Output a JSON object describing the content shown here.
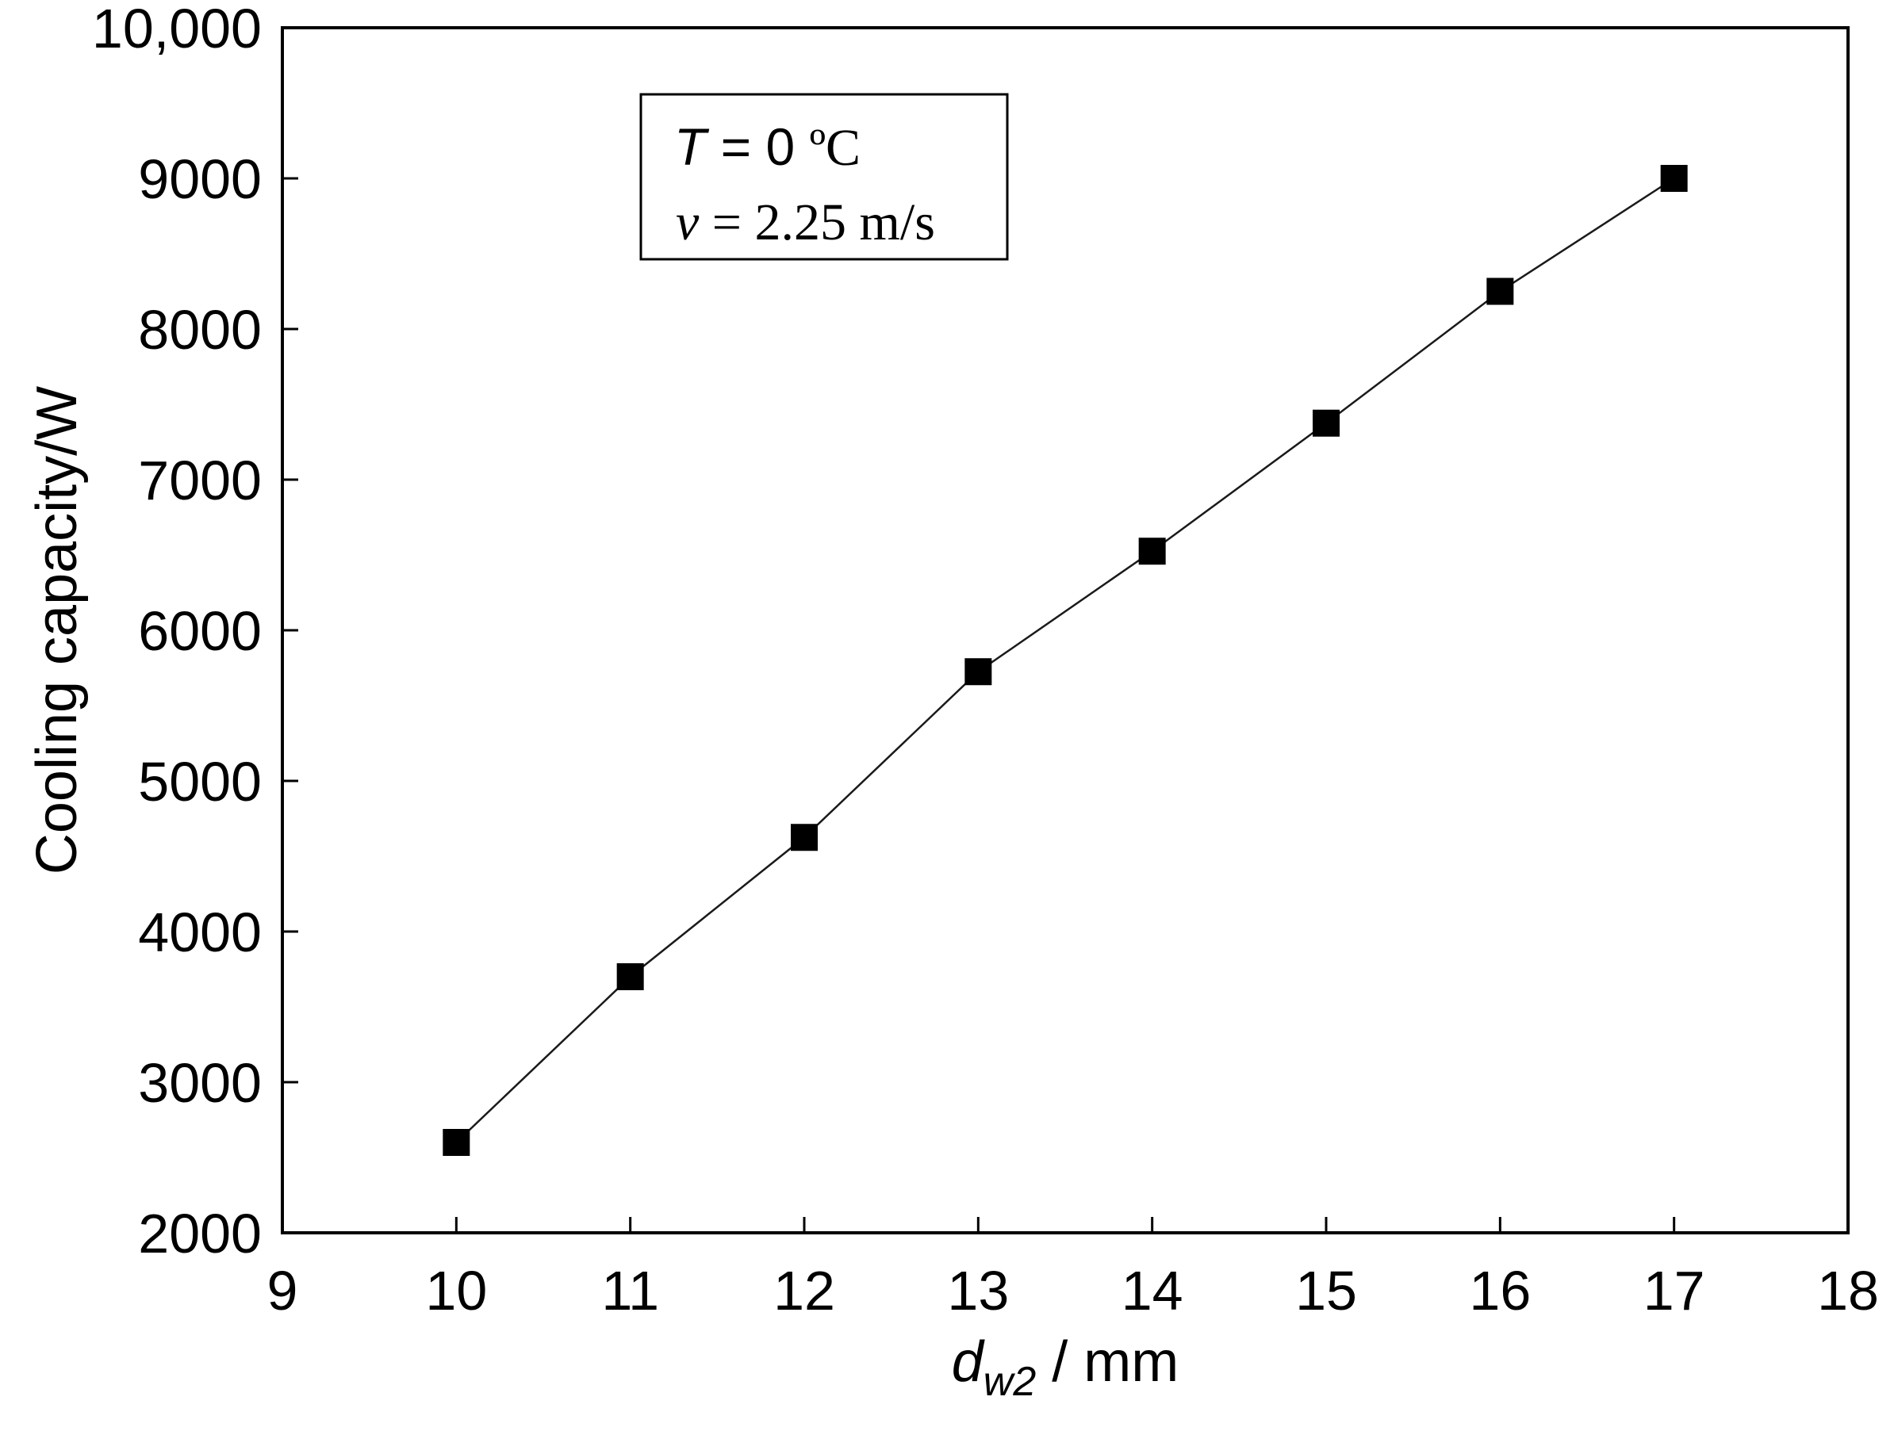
{
  "chart_data": {
    "type": "line",
    "title": "",
    "x": [
      10,
      11,
      12,
      13,
      14,
      15,
      16,
      17
    ],
    "series": [
      {
        "values": [
          2600,
          3700,
          4625,
          5725,
          6525,
          7375,
          8250,
          9000
        ],
        "marker": "filled-square",
        "line": "solid"
      }
    ],
    "xlabel": {
      "symbol": "d",
      "subscript": "w2",
      "unit": " / mm"
    },
    "ylabel": "Cooling capacity/W",
    "xlim": [
      9,
      18
    ],
    "ylim": [
      2000,
      10000
    ],
    "x_ticks": [
      "9",
      "10",
      "11",
      "12",
      "13",
      "14",
      "15",
      "16",
      "17",
      "18"
    ],
    "y_ticks": [
      "2000",
      "3000",
      "4000",
      "5000",
      "6000",
      "7000",
      "8000",
      "9000",
      "10,000"
    ],
    "grid": false,
    "legend": "none",
    "annotation": {
      "line1": {
        "var": "T",
        "eq": " = 0 ",
        "unit": "ºC"
      },
      "line2": {
        "var": "v",
        "rest": " = 2.25 m/s"
      }
    },
    "colors": {
      "line": "#1a1a1a",
      "marker": "#000000",
      "axis": "#000000",
      "background": "#ffffff"
    }
  }
}
